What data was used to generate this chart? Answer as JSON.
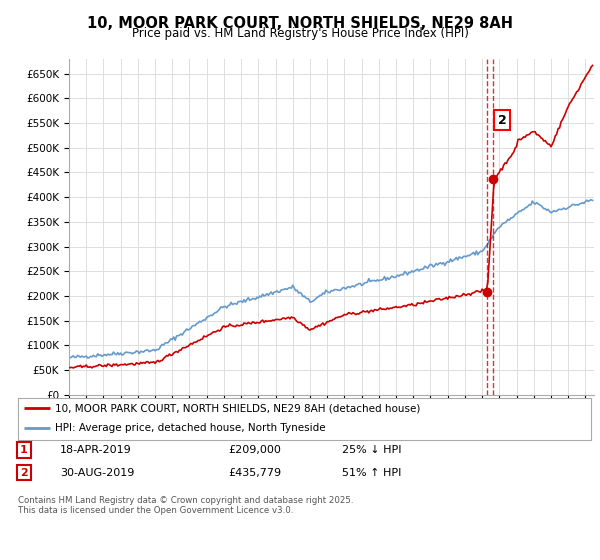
{
  "title": "10, MOOR PARK COURT, NORTH SHIELDS, NE29 8AH",
  "subtitle": "Price paid vs. HM Land Registry's House Price Index (HPI)",
  "ylabel_ticks": [
    "£0",
    "£50K",
    "£100K",
    "£150K",
    "£200K",
    "£250K",
    "£300K",
    "£350K",
    "£400K",
    "£450K",
    "£500K",
    "£550K",
    "£600K",
    "£650K"
  ],
  "ylim": [
    0,
    680000
  ],
  "xlim_start": 1995,
  "xlim_end": 2025.5,
  "transaction1_date": 2019.29,
  "transaction1_price": 209000,
  "transaction1_label": "1",
  "transaction2_date": 2019.66,
  "transaction2_price": 435779,
  "transaction2_label": "2",
  "legend_line1": "10, MOOR PARK COURT, NORTH SHIELDS, NE29 8AH (detached house)",
  "legend_line2": "HPI: Average price, detached house, North Tyneside",
  "table_row1_num": "1",
  "table_row1_date": "18-APR-2019",
  "table_row1_price": "£209,000",
  "table_row1_hpi": "25% ↓ HPI",
  "table_row2_num": "2",
  "table_row2_date": "30-AUG-2019",
  "table_row2_price": "£435,779",
  "table_row2_hpi": "51% ↑ HPI",
  "footnote": "Contains HM Land Registry data © Crown copyright and database right 2025.\nThis data is licensed under the Open Government Licence v3.0.",
  "red_color": "#cc0000",
  "blue_color": "#6699cc",
  "grid_color": "#dddddd",
  "background_color": "#ffffff"
}
